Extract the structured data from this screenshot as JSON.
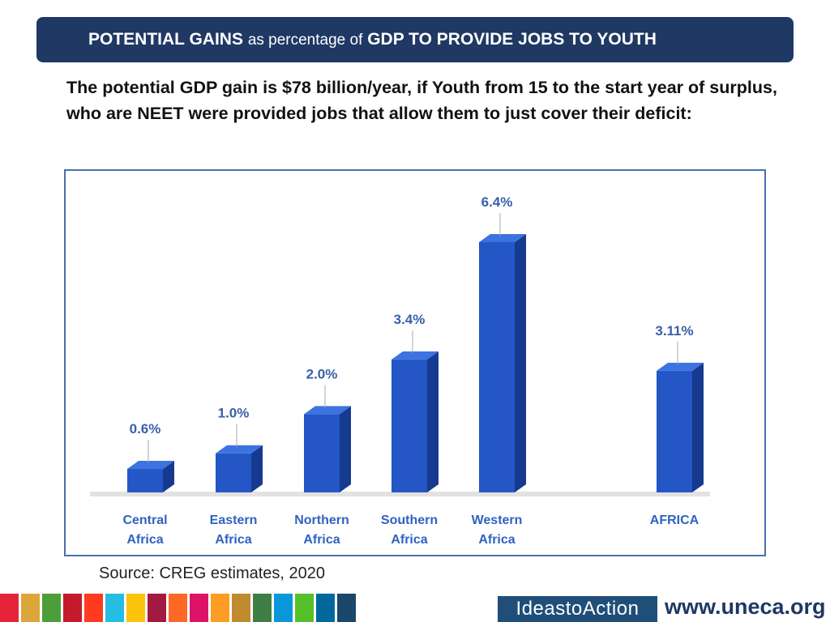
{
  "header": {
    "title_part1": "POTENTIAL GAINS",
    "title_part2": "as percentage of",
    "title_part3": "GDP TO PROVIDE JOBS TO YOUTH"
  },
  "intro_text": "The potential GDP gain is  $78 billion/year, if Youth from 15 to the start year of surplus, who are NEET were provided jobs that allow them to just cover their deficit:",
  "source": "Source: CREG estimates, 2020",
  "footer": {
    "ideas_text": "IdeastoAction",
    "site": "www.uneca.org",
    "colors": [
      "#e5243b",
      "#dda63a",
      "#4c9f38",
      "#c5192d",
      "#ff3a21",
      "#26bde2",
      "#fcc30b",
      "#a21942",
      "#fd6925",
      "#dd1367",
      "#fd9d24",
      "#bf8b2e",
      "#3f7e44",
      "#0a97d9",
      "#56c02b",
      "#00689d",
      "#19486a"
    ]
  },
  "chart_data": {
    "type": "bar",
    "title": "",
    "xlabel": "",
    "ylabel": "",
    "ylim": [
      0,
      7
    ],
    "grid": false,
    "legend": "none",
    "bar_color": "#2457c5",
    "label_color": "#3a5fa8",
    "categories": [
      [
        "Central",
        "Africa"
      ],
      [
        "Eastern",
        "Africa"
      ],
      [
        "Northern",
        "Africa"
      ],
      [
        "Southern",
        "Africa"
      ],
      [
        "Western",
        "Africa"
      ],
      [
        "AFRICA"
      ]
    ],
    "values": [
      0.6,
      1.0,
      2.0,
      3.4,
      6.4,
      3.11
    ],
    "value_labels": [
      "0.6%",
      "1.0%",
      "2.0%",
      "3.4%",
      "6.4%",
      "3.11%"
    ]
  }
}
